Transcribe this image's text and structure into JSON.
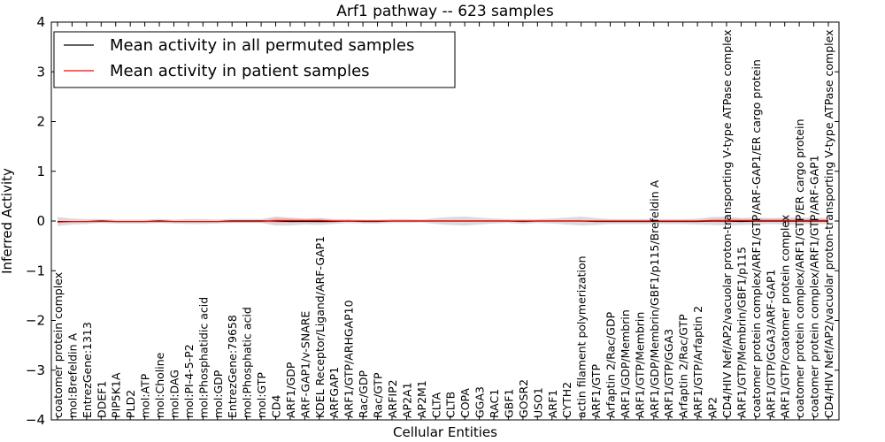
{
  "chart_data": {
    "type": "line",
    "title": "Arf1 pathway -- 623 samples",
    "xlabel": "Cellular Entities",
    "ylabel": "Inferred Activity",
    "ylim": [
      -4,
      4
    ],
    "yticks": [
      "−4",
      "−3",
      "−2",
      "−1",
      "0",
      "1",
      "2",
      "3",
      "4"
    ],
    "yticks_values": [
      -4,
      -3,
      -2,
      -1,
      0,
      1,
      2,
      3,
      4
    ],
    "grid": false,
    "legend_position": "top-left",
    "categories": [
      "coatomer protein complex",
      "mol:Brefeldin A",
      "EntrezGene:1313",
      "DDEF1",
      "PIP5K1A",
      "PLD2",
      "mol:ATP",
      "mol:Choline",
      "mol:DAG",
      "mol:PI-4-5-P2",
      "mol:Phosphatidic acid",
      "mol:GDP",
      "EntrezGene:79658",
      "mol:Phosphatic acid",
      "mol:GTP",
      "CD4",
      "ARF1/GDP",
      "ARF-GAP1/v-SNARE",
      "KDEL Receptor/Ligand/ARF-GAP1",
      "ARFGAP1",
      "ARF1/GTP/ARHGAP10",
      "Rac/GDP",
      "Rac/GTP",
      "ARFIP2",
      "AP2A1",
      "AP2M1",
      "CLTA",
      "CLTB",
      "COPA",
      "GGA3",
      "RAC1",
      "GBF1",
      "GOSR2",
      "USO1",
      "ARF1",
      "CYTH2",
      "actin filament polymerization",
      "ARF1/GTP",
      "Arfaptin 2/Rac/GDP",
      "ARF1/GDP/Membrin",
      "ARF1/GTP/Membrin",
      "ARF1/GDP/Membrin/GBF1/p115/Brefeldin A",
      "ARF1/GTP/GGA3",
      "Arfaptin 2/Rac/GTP",
      "ARF1/GTP/Arfaptin 2",
      "AP2",
      "CD4/HIV Nef/AP2/vacuolar proton-transporting V-type ATPase complex",
      "ARF1/GTP/Membrin/GBF1/p115",
      "coatomer protein complex/ARF1/GTP/ARF-GAP1/ER cargo protein",
      "ARF1/GTP/GGA3/ARF-GAP1",
      "ARF1/GTP/coatomer protein complex",
      "coatomer protein complex/ARF1/GTP/ER cargo protein",
      "coatomer protein complex/ARF1/GTP/ARF-GAP1",
      "CD4/HIV Nef/AP2/vacuolar proton-transporting V-type ATPase complex"
    ],
    "series": [
      {
        "name": "Mean activity in all permuted samples",
        "color": "#000000",
        "values": [
          -0.01,
          -0.01,
          -0.01,
          0,
          -0.01,
          -0.01,
          -0.01,
          0,
          -0.01,
          -0.01,
          -0.01,
          -0.01,
          0,
          0,
          0,
          0,
          -0.01,
          -0.01,
          -0.01,
          -0.01,
          0,
          -0.01,
          -0.01,
          0,
          0,
          0,
          0,
          0,
          0,
          0,
          0,
          0,
          -0.01,
          0,
          0,
          0,
          0,
          -0.01,
          -0.01,
          -0.01,
          -0.01,
          -0.01,
          -0.01,
          -0.01,
          -0.01,
          0,
          0,
          -0.01,
          0,
          0,
          0,
          0,
          0,
          0
        ]
      },
      {
        "name": "Mean activity in patient samples",
        "color": "#ff0000",
        "values": [
          -0.02,
          -0.01,
          -0.01,
          -0.01,
          -0.01,
          -0.01,
          -0.01,
          -0.01,
          -0.01,
          -0.01,
          -0.01,
          -0.01,
          -0.01,
          -0.01,
          -0.01,
          0.01,
          0.01,
          0.01,
          0.01,
          0,
          0,
          0,
          0,
          0,
          0,
          0,
          0,
          0,
          0,
          0,
          0,
          0,
          0,
          0,
          0,
          0,
          0,
          0,
          0,
          0,
          0,
          0,
          0,
          0,
          0,
          0.01,
          0.01,
          0.01,
          0.01,
          0.01,
          0.01,
          0.01,
          0.01,
          0.01
        ]
      }
    ],
    "band_permuted": {
      "color": "#bbbbbb",
      "half_width": [
        0.09,
        0.06,
        0.05,
        0.04,
        0.04,
        0.04,
        0.04,
        0.04,
        0.04,
        0.05,
        0.05,
        0.04,
        0.04,
        0.04,
        0.04,
        0.09,
        0.08,
        0.06,
        0.07,
        0.05,
        0.04,
        0.04,
        0.04,
        0.04,
        0.04,
        0.03,
        0.06,
        0.08,
        0.09,
        0.07,
        0.05,
        0.04,
        0.05,
        0.04,
        0.05,
        0.07,
        0.09,
        0.07,
        0.05,
        0.05,
        0.05,
        0.05,
        0.05,
        0.05,
        0.06,
        0.08,
        0.09,
        0.07,
        0.07,
        0.06,
        0.07,
        0.07,
        0.06,
        0.06
      ]
    },
    "band_patient": {
      "color": "#ff9999",
      "half_width": [
        0.02,
        0.01,
        0.01,
        0.01,
        0.01,
        0.01,
        0.01,
        0.01,
        0.01,
        0.01,
        0.01,
        0.01,
        0.01,
        0.01,
        0.01,
        0.05,
        0.04,
        0.03,
        0.04,
        0.02,
        0.01,
        0.01,
        0.01,
        0.01,
        0.01,
        0.01,
        0.01,
        0.01,
        0.01,
        0.01,
        0.01,
        0.01,
        0.01,
        0.01,
        0.01,
        0.01,
        0.01,
        0.01,
        0.01,
        0.01,
        0.01,
        0.01,
        0.01,
        0.01,
        0.01,
        0.03,
        0.04,
        0.03,
        0.03,
        0.03,
        0.03,
        0.03,
        0.03,
        0.03
      ]
    }
  }
}
